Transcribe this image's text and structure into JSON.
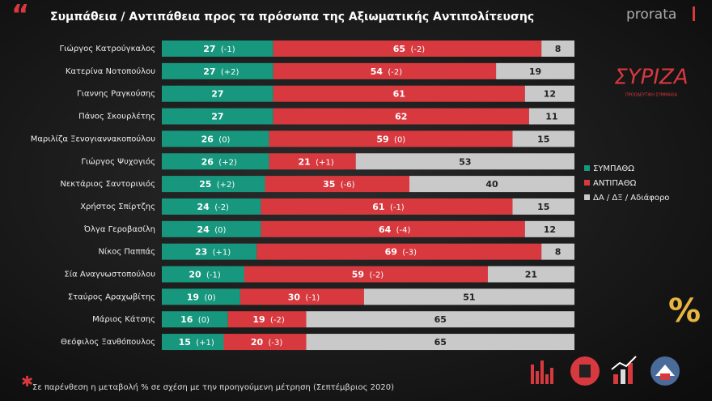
{
  "chart_data": {
    "type": "stacked-barh",
    "title": "Συμπάθεια / Αντιπάθεια προς τα πρόσωπα της Αξιωματικής Αντιπολίτευσης",
    "footnote": "Σε παρένθεση η μεταβολή % σε σχέση με την προηγούμενη μέτρηση (Σεπτέμβριος 2020)",
    "brand": "prorata",
    "party": "ΣΥΡΙΖΑ",
    "party_subtitle": "ΠΡΟΟΔΕΥΤΙΚΗ ΣΥΜΜΑΧΙΑ",
    "categories": [
      "Γιώργος Κατρούγκαλος",
      "Κατερίνα Νοτοπούλου",
      "Γιαννης Ραγκούσης",
      "Πάνος Σκουρλέτης",
      "Μαριλίζα Ξενογιαννακοπούλου",
      "Γιώργος Ψυχογιός",
      "Νεκτάριος Σαντορινιός",
      "Χρήστος Σπίρτζης",
      "Όλγα Γεροβασίλη",
      "Νίκος Παππάς",
      "Σία Αναγνωστοπούλου",
      "Σταύρος Αραχωβίτης",
      "Μάριος Κάτσης",
      "Θεόφιλος Ξανθόπουλος"
    ],
    "series": [
      {
        "name": "ΣΥΜΠΑΘΩ",
        "color": "#17977d",
        "values": [
          27,
          27,
          27,
          27,
          26,
          26,
          25,
          24,
          24,
          23,
          20,
          19,
          16,
          15
        ],
        "changes": [
          "(-1)",
          "(+2)",
          null,
          null,
          "(0)",
          "(+2)",
          "(+2)",
          "(-2)",
          "(0)",
          "(+1)",
          "(-1)",
          "(0)",
          "(0)",
          "(+1)"
        ]
      },
      {
        "name": "ΑΝΤΙΠΑΘΩ",
        "color": "#d8393f",
        "values": [
          65,
          54,
          61,
          62,
          59,
          21,
          35,
          61,
          64,
          69,
          59,
          30,
          19,
          20
        ],
        "changes": [
          "(-2)",
          "(-2)",
          null,
          null,
          "(0)",
          "(+1)",
          "(-6)",
          "(-1)",
          "(-4)",
          "(-3)",
          "(-2)",
          "(-1)",
          "(-2)",
          "(-3)"
        ]
      },
      {
        "name": "ΔΑ / ΔΞ / Αδιάφορο",
        "color": "#c9c9c9",
        "values": [
          8,
          19,
          12,
          11,
          15,
          53,
          40,
          15,
          12,
          8,
          21,
          51,
          65,
          65
        ],
        "changes": [
          null,
          null,
          null,
          null,
          null,
          null,
          null,
          null,
          null,
          null,
          null,
          null,
          null,
          null
        ]
      }
    ]
  }
}
